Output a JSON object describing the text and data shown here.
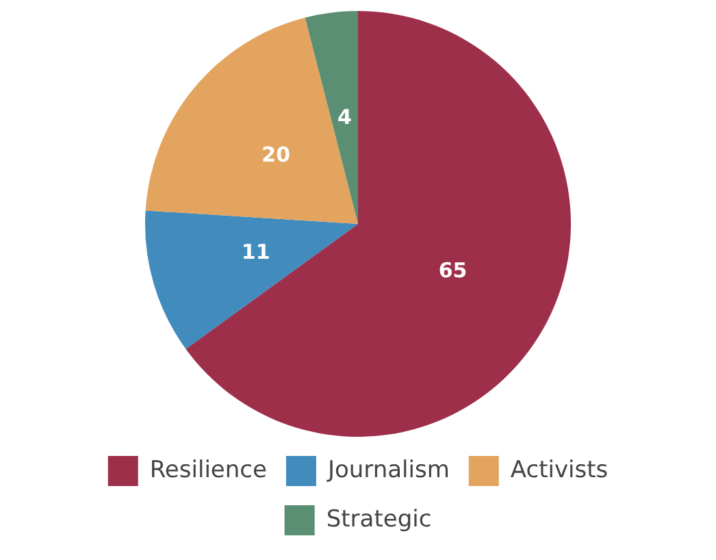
{
  "chart_data": {
    "type": "pie",
    "categories": [
      "Resilience",
      "Journalism",
      "Activists",
      "Strategic"
    ],
    "values": [
      65,
      11,
      20,
      4
    ],
    "colors": [
      "#9e2f4b",
      "#418bbd",
      "#e3a45f",
      "#5b8f73"
    ],
    "data_labels": true,
    "legend": "bottom"
  }
}
